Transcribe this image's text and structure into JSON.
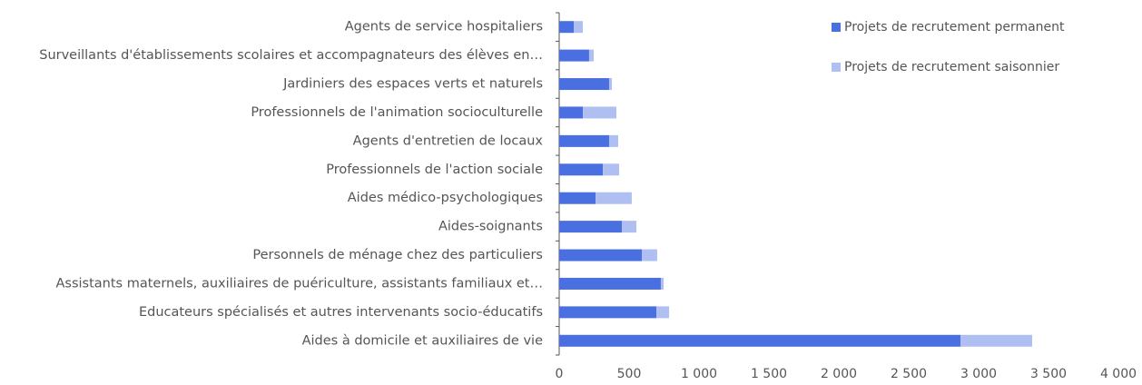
{
  "chart_data": {
    "type": "bar",
    "orientation": "horizontal",
    "stacked": true,
    "categories": [
      "Agents de service hospitaliers",
      "Surveillants d'établissements scolaires et accompagnateurs des élèves en…",
      "Jardiniers des espaces verts et naturels",
      "Professionnels de l'animation socioculturelle",
      "Agents d'entretien de locaux",
      "Professionnels de l'action sociale",
      "Aides médico-psychologiques",
      "Aides-soignants",
      "Personnels de ménage chez des particuliers",
      "Assistants maternels, auxiliaires de puériculture, assistants familiaux et…",
      "Educateurs spécialisés et autres intervenants socio-éducatifs",
      "Aides à domicile et auxiliaires de vie"
    ],
    "series": [
      {
        "name": "Projets de recrutement permanent",
        "color": "#4a6fe0",
        "values": [
          104,
          214,
          357,
          169,
          357,
          312,
          260,
          448,
          591,
          727,
          695,
          2870
        ]
      },
      {
        "name": "Projets de recrutement saisonnier",
        "color": "#b0bff2",
        "values": [
          65,
          33,
          20,
          240,
          65,
          117,
          259,
          104,
          110,
          20,
          91,
          513
        ]
      }
    ],
    "xlim": [
      0,
      4000
    ],
    "xticks": [
      0,
      500,
      {
        "value": 1000,
        "label": "1 000"
      },
      {
        "value": 1500,
        "label": "1 500"
      },
      {
        "value": 2000,
        "label": "2 000"
      },
      {
        "value": 2500,
        "label": "2 500"
      },
      {
        "value": 3000,
        "label": "3 000"
      },
      {
        "value": 3500,
        "label": "3 500"
      },
      {
        "value": 4000,
        "label": "4 000"
      }
    ],
    "legend": "upper right"
  }
}
